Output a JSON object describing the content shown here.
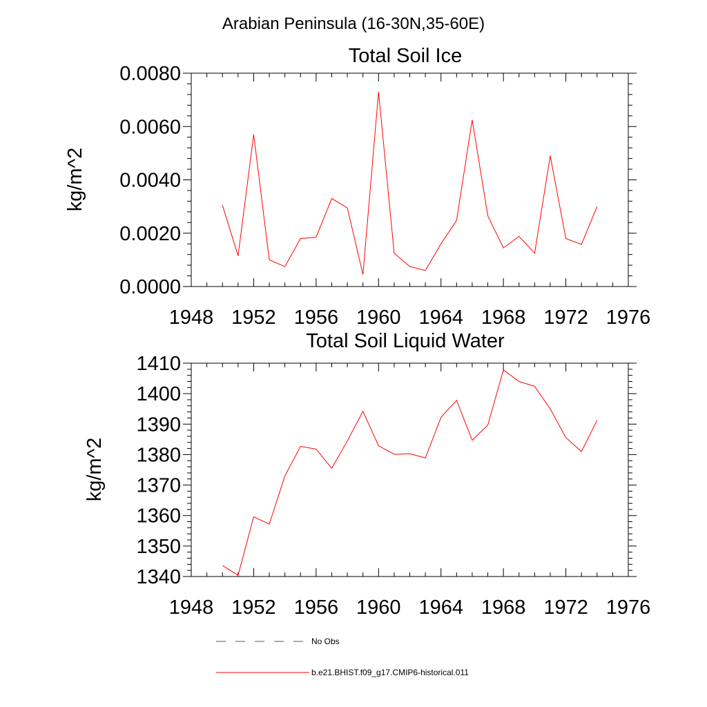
{
  "figure": {
    "main_title": "Arabian Peninsula (16-30N,35-60E)",
    "legend": {
      "entries": [
        {
          "label": "No Obs",
          "style": "dashed",
          "color": "#555555"
        },
        {
          "label": "b.e21.BHIST.f09_g17.CMIP6-historical.011",
          "style": "solid",
          "color": "#ff0000"
        }
      ]
    }
  },
  "chart_data": [
    {
      "type": "line",
      "title": "Total Soil Ice",
      "ylabel": "kg/m^2",
      "xlabel": "",
      "xlim": [
        1948,
        1976
      ],
      "ylim": [
        0.0,
        0.008
      ],
      "x_ticks": [
        1948,
        1952,
        1956,
        1960,
        1964,
        1968,
        1972,
        1976
      ],
      "y_ticks": [
        0.0,
        0.002,
        0.004,
        0.006,
        0.008
      ],
      "y_tick_labels": [
        "0.0000",
        "0.0020",
        "0.0040",
        "0.0060",
        "0.0080"
      ],
      "grid": false,
      "series": [
        {
          "color": "#ff0000",
          "x": [
            1950,
            1951,
            1952,
            1953,
            1954,
            1955,
            1956,
            1957,
            1958,
            1959,
            1960,
            1961,
            1962,
            1963,
            1964,
            1965,
            1966,
            1967,
            1968,
            1969,
            1970,
            1971,
            1972,
            1973,
            1974
          ],
          "values": [
            0.00305,
            0.00115,
            0.0057,
            0.001,
            0.00075,
            0.0018,
            0.00185,
            0.0033,
            0.00295,
            0.00045,
            0.0073,
            0.00125,
            0.00075,
            0.0006,
            0.0016,
            0.00248,
            0.00625,
            0.00265,
            0.00145,
            0.00188,
            0.00125,
            0.0049,
            0.0018,
            0.00158,
            0.003
          ]
        }
      ]
    },
    {
      "type": "line",
      "title": "Total Soil Liquid Water",
      "ylabel": "kg/m^2",
      "xlabel": "",
      "xlim": [
        1948,
        1976
      ],
      "ylim": [
        1340,
        1410
      ],
      "x_ticks": [
        1948,
        1952,
        1956,
        1960,
        1964,
        1968,
        1972,
        1976
      ],
      "y_ticks": [
        1340,
        1350,
        1360,
        1370,
        1380,
        1390,
        1400,
        1410
      ],
      "y_tick_labels": [
        "1340",
        "1350",
        "1360",
        "1370",
        "1380",
        "1390",
        "1400",
        "1410"
      ],
      "grid": false,
      "series": [
        {
          "color": "#ff0000",
          "x": [
            1950,
            1951,
            1952,
            1953,
            1954,
            1955,
            1956,
            1957,
            1958,
            1959,
            1960,
            1961,
            1962,
            1963,
            1964,
            1965,
            1966,
            1967,
            1968,
            1969,
            1970,
            1971,
            1972,
            1973,
            1974
          ],
          "values": [
            1343.6,
            1340.4,
            1359.6,
            1357.2,
            1373.0,
            1382.7,
            1381.8,
            1375.5,
            1384.5,
            1394.2,
            1382.9,
            1380.1,
            1380.3,
            1378.9,
            1392.2,
            1397.8,
            1384.7,
            1389.7,
            1407.8,
            1404.0,
            1402.4,
            1395.0,
            1385.6,
            1381.0,
            1391.3
          ]
        }
      ]
    }
  ]
}
